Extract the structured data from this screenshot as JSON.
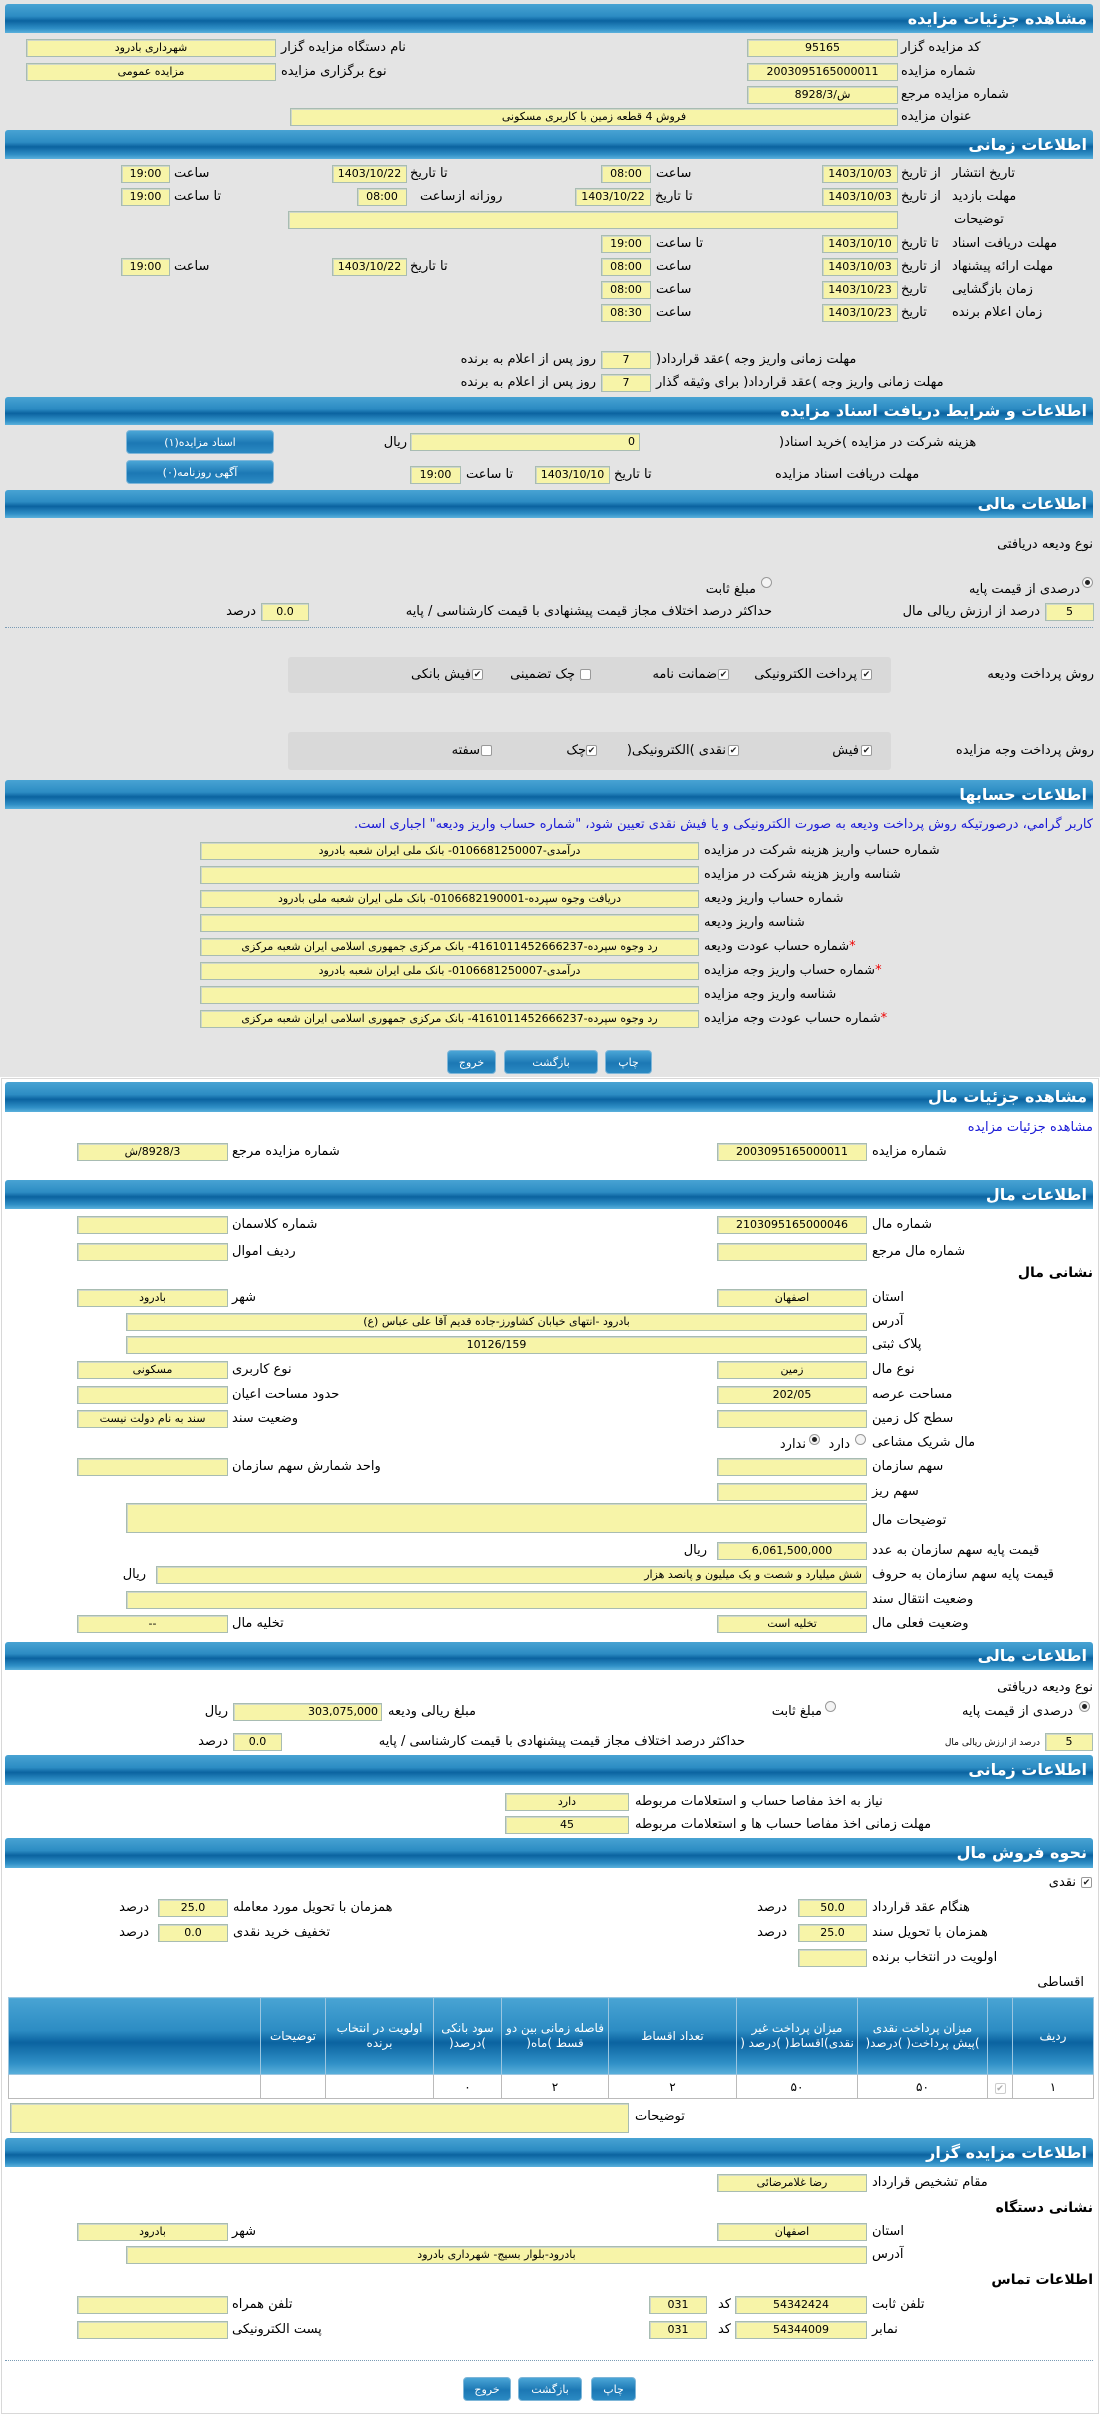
{
  "auction": {
    "header": "مشاهده جزئیات مزایده",
    "code_label": "کد مزایده گزار",
    "code": "95165",
    "org_label": "نام دستگاه مزایده گزار",
    "org": "شهرداری بادرود",
    "number_label": "شماره مزایده",
    "number": "2003095165000011",
    "type_label": "نوع برگزاری مزایده",
    "type": "مزایده عمومی",
    "ref_label": "شماره مزایده مرجع",
    "ref": "ش/8928/3",
    "title_label": "عنوان مزایده",
    "title": "فروش 4 قطعه زمین با کاربری مسکونی"
  },
  "timing": {
    "header": "اطلاعات زمانی",
    "from_date": "از تاریخ",
    "to_date": "تا تاریخ",
    "date": "تاریخ",
    "hour": "ساعت",
    "to_hour": "تا ساعت",
    "daily_from": "روزانه ازساعت",
    "publish_label": "تاریخ انتشار",
    "publish_from": "1403/10/03",
    "publish_from_time": "08:00",
    "publish_to": "1403/10/22",
    "publish_to_time": "19:00",
    "visit_label": "مهلت بازدید",
    "visit_from": "1403/10/03",
    "visit_to": "1403/10/22",
    "visit_daily_from": "08:00",
    "visit_to_time": "19:00",
    "desc_label": "توضیحات",
    "desc": "",
    "docs_label": "مهلت دریافت اسناد",
    "docs_to": "1403/10/10",
    "docs_to_time": "19:00",
    "offer_label": "مهلت ارائه پیشنهاد",
    "offer_from": "1403/10/03",
    "offer_from_time": "08:00",
    "offer_to": "1403/10/22",
    "offer_to_time": "19:00",
    "opening_label": "زمان بازگشایی",
    "opening_date": "1403/10/23",
    "opening_time": "08:00",
    "winner_label": "زمان اعلام برنده",
    "winner_date": "1403/10/23",
    "winner_time": "08:30",
    "pay_contract_label": "مهلت زمانی واریز وجه )عقد قرارداد(",
    "pay_contract_days": "7",
    "pay_guarantor_label": "مهلت زمانی واریز وجه )عقد قرارداد( برای وثیقه گذار",
    "pay_guarantor_days": "7",
    "days_suffix": "روز پس از اعلام به برنده"
  },
  "documents": {
    "header": "اطلاعات و شرایط دریافت اسناد مزایده",
    "fee_label": "هزینه شرکت در مزایده )خرید اسناد(",
    "fee": "0",
    "currency": "ریال",
    "deadline_label": "مهلت دریافت اسناد مزایده",
    "to_date": "تا تاریخ",
    "date": "1403/10/10",
    "to_hour": "تا ساعت",
    "time": "19:00",
    "docs_button": "اسناد مزایده(۱)",
    "newspaper_button": "آگهی روزنامه(۰)"
  },
  "finance": {
    "header": "اطلاعات مالی",
    "deposit_type_label": "نوع ودیعه دریافتی",
    "opt_percent": "درصدی از قیمت پایه",
    "opt_fixed": "مبلغ ثابت",
    "selected": "درصدی از قیمت پایه",
    "percent": "5",
    "percent_suffix": "درصد از ارزش ریالی مال",
    "max_diff_label": "حداکثر درصد اختلاف مجاز قیمت پیشنهادی با قیمت کارشناسی / پایه",
    "max_diff": "0.0",
    "percent_unit": "درصد",
    "deposit_methods_label": "روش پرداخت ودیعه",
    "deposit_methods": [
      {
        "label": "پرداخت الکترونیکی",
        "checked": true
      },
      {
        "label": "ضمانت نامه",
        "checked": true
      },
      {
        "label": "چک تضمینی",
        "checked": false
      },
      {
        "label": "فیش بانکی",
        "checked": true
      }
    ],
    "payment_methods_label": "روش پرداخت وجه مزایده",
    "payment_methods": [
      {
        "label": "فیش",
        "checked": true
      },
      {
        "label": "نقدی )الکترونیکی(",
        "checked": true
      },
      {
        "label": "چک",
        "checked": true
      },
      {
        "label": "سفته",
        "checked": false
      }
    ]
  },
  "accounts": {
    "header": "اطلاعات حسابها",
    "note": "کاربر گرامي، درصورتیکه روش پرداخت ودیعه به صورت الکترونیکی و یا فیش نقدی تعیین شود، \"شماره حساب واریز ودیعه\" اجباری است.",
    "rows": [
      {
        "label": "شماره حساب واریز هزینه شرکت در مزایده",
        "value": "درآمدی-0106681250007- بانک ملی ایران شعبه بادرود",
        "required": false
      },
      {
        "label": "شناسه واریز هزینه شرکت در مزایده",
        "value": "",
        "required": false
      },
      {
        "label": "شماره حساب واریز ودیعه",
        "value": "دریافت وجوه سپرده-0106682190001- بانک ملی ایران شعبه ملی بادرود",
        "required": false
      },
      {
        "label": "شناسه واریز ودیعه",
        "value": "",
        "required": false
      },
      {
        "label": "شماره حساب عودت ودیعه",
        "value": "رد وجوه سپرده-4161011452666237- بانک مرکزی جمهوری اسلامی ایران شعبه مرکزی",
        "required": true
      },
      {
        "label": "شماره حساب واریز وجه مزایده",
        "value": "درآمدی-0106681250007- بانک ملی ایران شعبه بادرود",
        "required": true
      },
      {
        "label": "شناسه واریز وجه مزایده",
        "value": "",
        "required": false
      },
      {
        "label": "شماره حساب عودت وجه مزایده",
        "value": "رد وجوه سپرده-4161011452666237- بانک مرکزی جمهوری اسلامی ایران شعبه مرکزی",
        "required": true
      }
    ],
    "required_mark": "*"
  },
  "buttons": {
    "print": "چاپ",
    "back": "بازگشت",
    "exit": "خروج"
  },
  "property": {
    "header": "مشاهده جزئیات مال",
    "auction_link": "مشاهده جزئیات مزایده",
    "auction_number_label": "شماره مزایده",
    "auction_number": "2003095165000011",
    "auction_ref_label": "شماره مزایده مرجع",
    "auction_ref": "8928/3/ش",
    "info_header": "اطلاعات مال",
    "number_label": "شماره مال",
    "number": "2103095165000046",
    "class_label": "شماره کلاسمان",
    "class": "",
    "ref_label": "شماره مال مرجع",
    "ref": "",
    "row_label": "ردیف اموال",
    "row": "",
    "address_heading": "نشانی مال",
    "province_label": "استان",
    "province": "اصفهان",
    "city_label": "شهر",
    "city": "بادرود",
    "address_label": "آدرس",
    "address": "بادرود -انتهای خیابان کشاورز-جاده قدیم آقا علی عباس (ع)",
    "plate_label": "پلاک ثبتی",
    "plate": "10126/159",
    "kind_label": "نوع مال",
    "kind": "زمین",
    "usage_label": "نوع کاربری",
    "usage": "مسکونی",
    "area_label": "مساحت عرصه",
    "area": "202/05",
    "building_label": "حدود مساحت اعیان",
    "building": "",
    "surface_label": "سطح کل زمین",
    "surface": "",
    "deed_label": "وضعیت سند",
    "deed": "سند به نام دولت نیست",
    "shared_label": "مال شریک مشاعی",
    "shared_yes": "دارد",
    "shared_no": "ندارد",
    "shared_selected": "ندارد",
    "share_label": "سهم سازمان",
    "share": "",
    "share_unit_label": "واحد شمارش سهم سازمان",
    "share_unit": "",
    "minor_share_label": "سهم ریز",
    "minor_share": "",
    "desc_label": "توضیحات مال",
    "desc": "",
    "price_label": "قیمت پایه سهم سازمان به عدد",
    "price": "6,061,500,000",
    "currency": "ریال",
    "price_words_label": "قیمت پایه سهم سازمان به حروف",
    "price_words": "شش میلیارد و شصت و یک میلیون و پانصد هزار",
    "transfer_label": "وضعیت انتقال سند",
    "transfer": "",
    "status_label": "وضعیت فعلی مال",
    "status": "تخلیه است",
    "evac_label": "تخلیه مال",
    "evac": "--"
  },
  "finance2": {
    "header": "اطلاعات مالی",
    "deposit_type_label": "نوع ودیعه دریافتی",
    "opt_percent": "درصدی از قیمت پایه",
    "opt_fixed": "مبلغ ثابت",
    "selected": "درصدی از قیمت پایه",
    "deposit_amount_label": "مبلغ ریالی ودیعه",
    "deposit_amount": "303,075,000",
    "currency": "ریال",
    "percent": "5",
    "percent_suffix": "درصد از ارزش ریالی مال",
    "max_diff_label": "حداکثر درصد اختلاف مجاز قیمت پیشنهادی با قیمت کارشناسی / پایه",
    "max_diff": "0.0",
    "percent_unit": "درصد"
  },
  "timing2": {
    "header": "اطلاعات زمانی",
    "clearance_label": "نیاز به اخذ مفاصا حساب و استعلامات مربوطه",
    "clearance": "دارد",
    "clearance_days_label": "مهلت زمانی اخذ مفاصا حساب ها و استعلامات مربوطه",
    "clearance_days": "45"
  },
  "sale": {
    "header": "نحوه فروش مال",
    "cash_label": "نقدی",
    "cash_checked": true,
    "contract_label": "هنگام عقد قرارداد",
    "contract": "50.0",
    "delivery_label": "همزمان با تحویل مورد معامله",
    "delivery": "25.0",
    "deed_label": "همزمان با تحویل سند",
    "deed": "25.0",
    "discount_label": "تخفیف خرید نقدی",
    "discount": "0.0",
    "priority_label": "اولویت در انتخاب برنده",
    "priority": "",
    "percent_unit": "درصد",
    "installments_label": "اقساطی",
    "table": {
      "columns": [
        "ردیف",
        "",
        "میزان پرداخت نقدی )پیش پرداخت( )درصد(",
        "میزان پرداخت غیر نقدی)اقساط( )درصد (",
        "تعداد اقساط",
        "فاصله زمانی بین دو قسط )ماه(",
        "سود بانکی )درصد(",
        "اولویت در انتخاب برنده",
        "توضیحات",
        ""
      ],
      "rows": [
        {
          "row": "۱",
          "checked": true,
          "cash": "۵۰",
          "noncash": "۵۰",
          "count": "۲",
          "interval": "۲",
          "interest": "۰",
          "priority": "",
          "desc": "",
          "extra": ""
        }
      ]
    },
    "desc_label": "توضیحات",
    "desc": ""
  },
  "auctioneer": {
    "header": "اطلاعات مزایده گزار",
    "authority_label": "مقام تشخیص قرارداد",
    "authority": "رضا غلامرضائی",
    "address_heading": "نشانی دستگاه",
    "province_label": "استان",
    "province": "اصفهان",
    "city_label": "شهر",
    "city": "بادرود",
    "address_label": "آدرس",
    "address": "بادرود-بلوار بسیج- شهرداری بادرود",
    "contact_heading": "اطلاعات تماس",
    "phone_label": "تلفن ثابت",
    "phone": "54342424",
    "code_label": "کد",
    "phone_code": "031",
    "mobile_label": "تلفن همراه",
    "mobile": "",
    "fax_label": "نمابر",
    "fax": "54344009",
    "fax_code": "031",
    "email_label": "پست الکترونیکی",
    "email": ""
  }
}
